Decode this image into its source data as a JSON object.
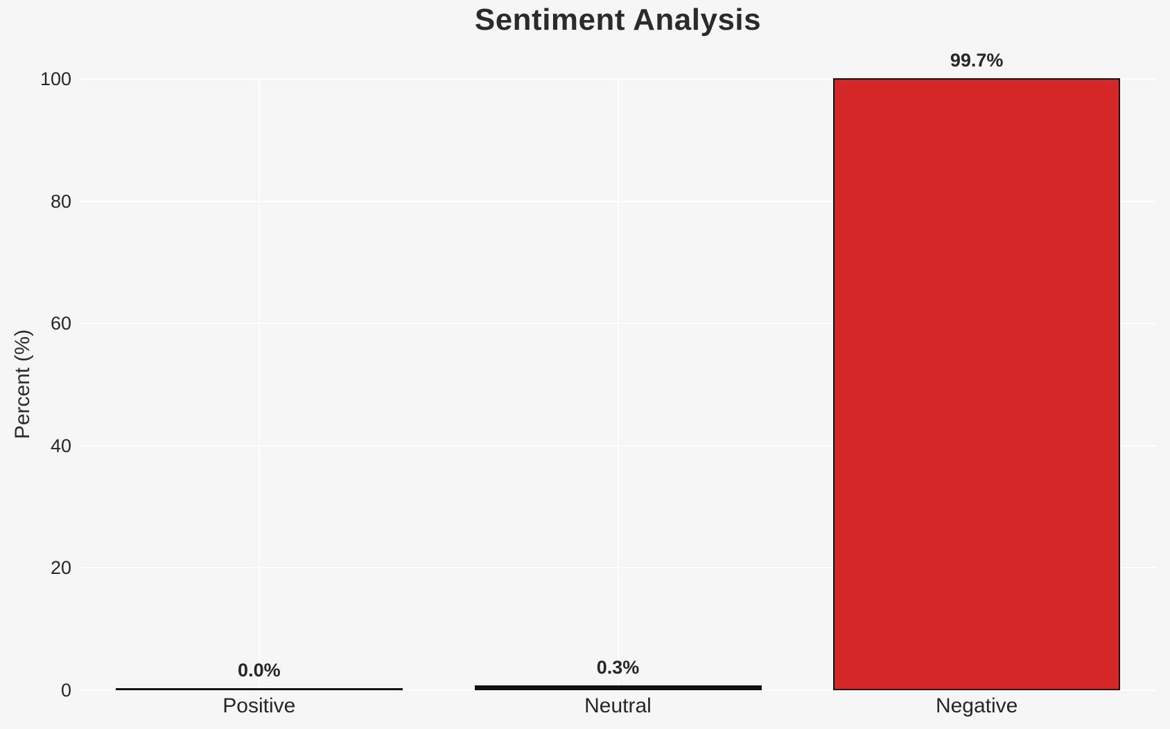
{
  "chart_data": {
    "type": "bar",
    "title": "Sentiment Analysis",
    "ylabel": "Percent (%)",
    "xlabel": "",
    "categories": [
      "Positive",
      "Neutral",
      "Negative"
    ],
    "values": [
      0.0,
      0.3,
      99.7
    ],
    "value_labels": [
      "0.0%",
      "0.3%",
      "99.7%"
    ],
    "ylim": [
      0,
      100
    ],
    "yticks": [
      "0",
      "20",
      "40",
      "60",
      "80",
      "100"
    ],
    "ytick_values": [
      0,
      20,
      40,
      60,
      80,
      100
    ],
    "grid": {
      "horizontal": true,
      "vertical": true,
      "color": "#ffffff"
    },
    "legend_position": "none",
    "bar_fill_colors": [
      null,
      null,
      "#d62728"
    ],
    "bar_edge_color": "#111111"
  },
  "colors": {
    "figure_background": "#f6f6f7",
    "text": "#262626",
    "title_text": "#2b2b2b",
    "gridline": "#ffffff",
    "negative_bar_fill": "#d62728",
    "bar_edge": "#111111"
  }
}
